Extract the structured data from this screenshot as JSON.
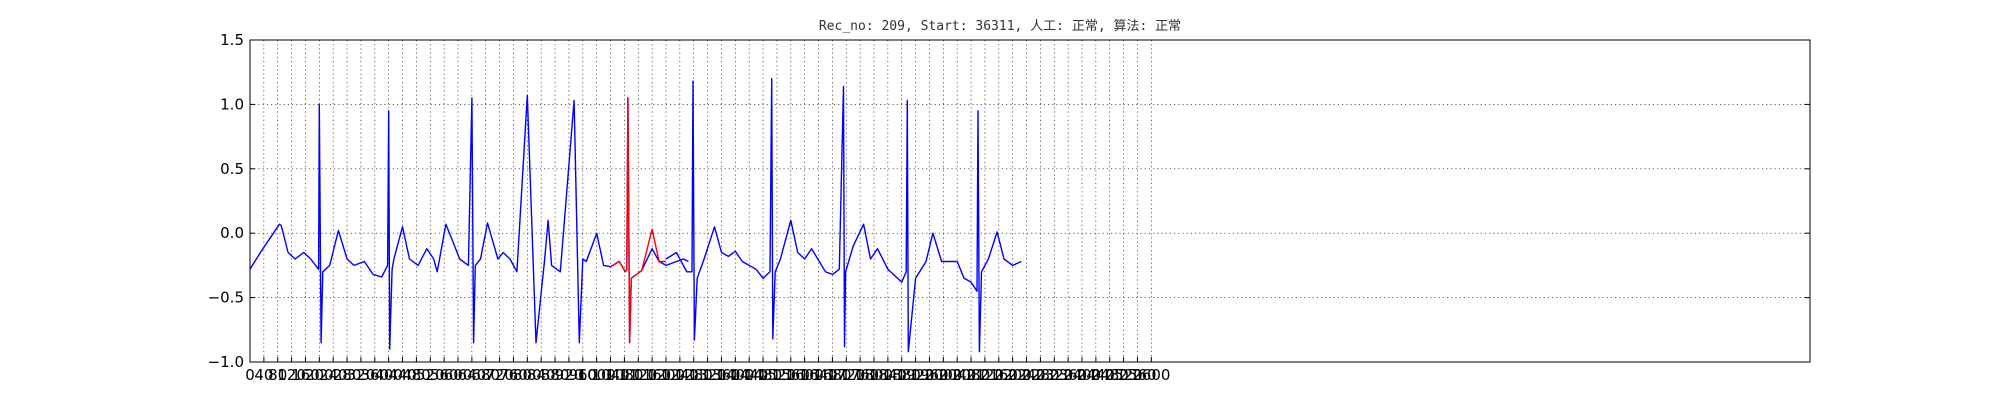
{
  "chart_data": {
    "type": "line",
    "title": "Rec_no: 209, Start: 36311, 人工: 正常, 算法: 正常",
    "xlabel": "",
    "ylabel": "",
    "xlim": [
      0,
      4500
    ],
    "ylim": [
      -1.0,
      1.5
    ],
    "grid": true,
    "grid_style": "dotted",
    "x_tick_labels": [
      "0",
      "40",
      "80",
      "120",
      "160",
      "200",
      "240",
      "280",
      "320",
      "360",
      "400",
      "440",
      "480",
      "520",
      "560",
      "600",
      "640",
      "680",
      "720",
      "760",
      "800",
      "840",
      "880",
      "920",
      "960",
      "1000",
      "1040",
      "1080",
      "1120",
      "1160",
      "1200",
      "1240",
      "1280",
      "1320",
      "1360",
      "1400",
      "1440",
      "1480",
      "1520",
      "1560",
      "1600",
      "1640",
      "1680",
      "1720",
      "1760",
      "1800",
      "1840",
      "1880",
      "1920",
      "1960",
      "2000",
      "2040",
      "2080",
      "2120",
      "2160",
      "2200",
      "2240",
      "2280",
      "2320",
      "2360",
      "2400",
      "2440",
      "2480",
      "2520",
      "2560",
      "2600"
    ],
    "y_tick_labels": [
      "−1.0",
      "−0.5",
      "0.0",
      "0.5",
      "1.0",
      "1.5"
    ],
    "y_ticks": [
      -1.0,
      -0.5,
      0.0,
      0.5,
      1.0,
      1.5
    ],
    "series": [
      {
        "color": "#0000ff",
        "x": [
          0,
          30,
          80,
          85,
          90,
          110,
          130,
          155,
          175,
          198,
          200,
          205,
          210,
          230,
          255,
          280,
          300,
          330,
          355,
          380,
          397,
          400,
          403,
          410,
          415,
          440,
          460,
          485,
          510,
          530,
          540,
          565,
          605,
          630,
          640,
          645,
          650,
          665,
          685,
          715,
          730,
          750,
          770,
          800,
          825,
          850,
          860,
          870,
          895,
          935,
          950,
          960,
          970,
          1000,
          1020,
          1040,
          1065,
          1083,
          1087,
          1090,
          1095,
          1100,
          1130,
          1160,
          1180,
          1200,
          1250,
          1265
        ],
        "y": [
          -0.28,
          -0.15,
          0.05,
          0.07,
          0.06,
          -0.15,
          -0.2,
          -0.15,
          -0.2,
          -0.28,
          1.0,
          -0.85,
          -0.3,
          -0.25,
          0.02,
          -0.2,
          -0.25,
          -0.22,
          -0.32,
          -0.34,
          -0.25,
          0.95,
          -0.9,
          -0.28,
          -0.2,
          0.05,
          -0.2,
          -0.25,
          -0.12,
          -0.2,
          -0.3,
          0.07,
          -0.2,
          -0.25,
          1.05,
          -0.85,
          -0.25,
          -0.2,
          0.08,
          -0.2,
          -0.15,
          -0.2,
          -0.3,
          1.07,
          -0.85,
          -0.2,
          0.1,
          -0.25,
          -0.3,
          1.03,
          -0.85,
          -0.2,
          -0.22,
          0.0,
          -0.25,
          -0.26,
          -0.22,
          -0.3,
          -0.28,
          1.05,
          -0.85,
          -0.35,
          -0.29,
          -0.12,
          -0.22,
          -0.25,
          -0.2,
          -0.22
        ]
      },
      {
        "color": "#ff0000",
        "x": [
          1040,
          1065,
          1083,
          1087,
          1090,
          1095,
          1100,
          1130,
          1160,
          1180,
          1200
        ],
        "y": [
          -0.26,
          -0.22,
          -0.3,
          -0.28,
          1.05,
          -0.85,
          -0.35,
          -0.29,
          0.03,
          -0.22,
          -0.22
        ]
      },
      {
        "color": "#0000ff",
        "x": [
          1200,
          1230,
          1260,
          1275,
          1278,
          1282,
          1290,
          1310,
          1340,
          1360,
          1380,
          1400,
          1420,
          1460,
          1480,
          1500,
          1505,
          1508,
          1515,
          1530,
          1560,
          1580,
          1600,
          1620,
          1660,
          1680,
          1700,
          1712,
          1715,
          1718,
          1740,
          1770,
          1790,
          1810,
          1840,
          1880,
          1893,
          1896,
          1899,
          1920,
          1950,
          1970,
          1995,
          2040,
          2060,
          2080,
          2097,
          2100,
          2104,
          2110
        ],
        "y": [
          -0.2,
          -0.15,
          -0.3,
          -0.3,
          1.18,
          -0.83,
          -0.35,
          -0.2,
          0.05,
          -0.15,
          -0.18,
          -0.14,
          -0.22,
          -0.28,
          -0.35,
          -0.3,
          1.2,
          -0.82,
          -0.3,
          -0.2,
          0.1,
          -0.15,
          -0.2,
          -0.12,
          -0.3,
          -0.32,
          -0.28,
          1.14,
          -0.88,
          -0.3,
          -0.1,
          0.07,
          -0.2,
          -0.12,
          -0.28,
          -0.38,
          -0.3,
          1.03,
          -0.92,
          -0.35,
          -0.22,
          0.0,
          -0.22,
          -0.22,
          -0.35,
          -0.38,
          -0.45,
          0.95,
          -0.92,
          -0.3
        ]
      },
      {
        "color": "#0000ff",
        "x": [
          2110,
          2130,
          2155,
          2175,
          2200,
          2225
        ],
        "y": [
          -0.3,
          -0.2,
          0.01,
          -0.2,
          -0.25,
          -0.22
        ]
      }
    ]
  }
}
